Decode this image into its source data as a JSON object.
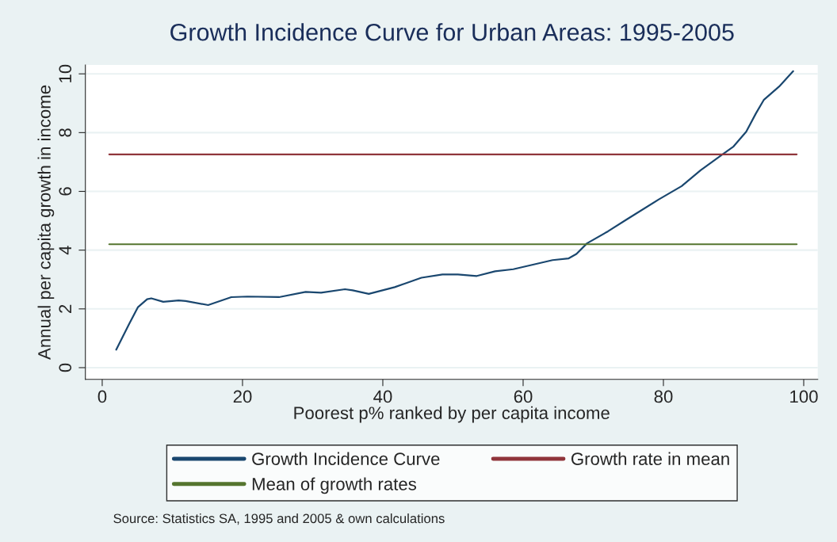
{
  "chart_data": {
    "type": "line",
    "title": "Growth Incidence Curve for Urban Areas: 1995-2005",
    "xlabel": "Poorest p% ranked by per capita income",
    "ylabel": "Annual per capita growth in income",
    "series": [
      {
        "name": "Growth Incidence Curve",
        "color": "#1a476f",
        "x": [
          2.0,
          3.8,
          5.1,
          6.4,
          7.0,
          8.7,
          10.9,
          11.9,
          15.1,
          18.4,
          20.7,
          25.2,
          29.0,
          31.2,
          34.6,
          35.7,
          38.0,
          41.7,
          45.5,
          48.5,
          50.7,
          53.4,
          56.0,
          58.6,
          64.2,
          66.5,
          67.6,
          69.1,
          72.1,
          74.8,
          79.3,
          82.6,
          85.3,
          88.3,
          90.0,
          91.8,
          93.2,
          94.3,
          96.5,
          98.5
        ],
        "values": [
          0.61,
          1.47,
          2.06,
          2.33,
          2.36,
          2.24,
          2.29,
          2.27,
          2.13,
          2.4,
          2.42,
          2.4,
          2.58,
          2.55,
          2.67,
          2.63,
          2.51,
          2.74,
          3.06,
          3.17,
          3.17,
          3.12,
          3.28,
          3.35,
          3.66,
          3.72,
          3.87,
          4.23,
          4.64,
          5.05,
          5.72,
          6.18,
          6.72,
          7.24,
          7.53,
          8.03,
          8.66,
          9.11,
          9.57,
          10.09
        ]
      },
      {
        "name": "Growth rate in mean",
        "color": "#90353b",
        "x": [
          1,
          99
        ],
        "values": [
          7.26,
          7.26
        ]
      },
      {
        "name": "Mean of growth rates",
        "color": "#55752f",
        "x": [
          1,
          99
        ],
        "values": [
          4.2,
          4.2
        ]
      }
    ],
    "xlim": [
      -2.4,
      102
    ],
    "xticks": [
      0,
      20,
      40,
      60,
      80,
      100
    ],
    "ylim": [
      -0.4,
      10.3
    ],
    "yticks": [
      0,
      2,
      4,
      6,
      8,
      10
    ],
    "grid": "y",
    "legend": "bottom",
    "marker": "none",
    "line_style": "solid",
    "annotations": [
      "Source: Statistics SA, 1995 and 2005 & own calculations"
    ]
  }
}
